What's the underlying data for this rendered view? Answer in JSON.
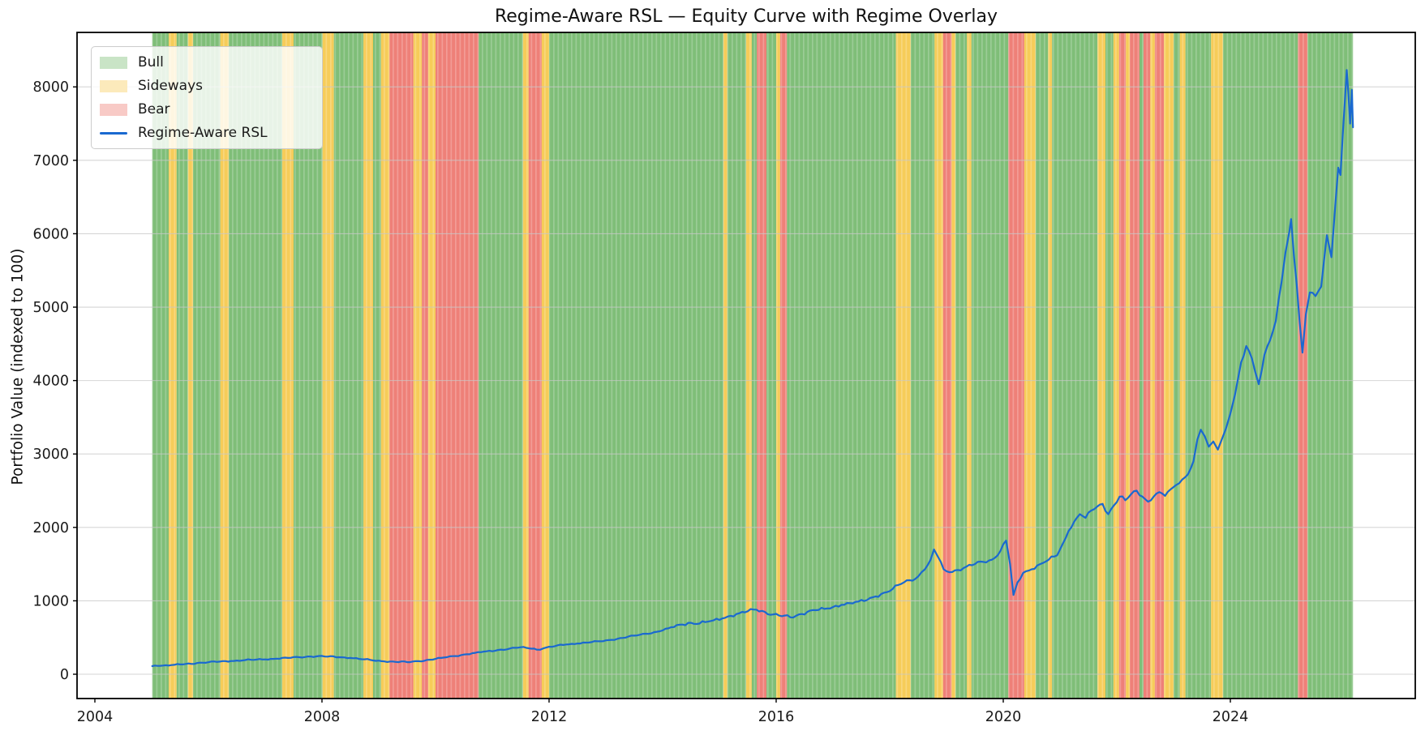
{
  "title": "Regime-Aware RSL — Equity Curve with Regime Overlay",
  "ylabel": "Portfolio Value (indexed to 100)",
  "legend": {
    "position": "upper left",
    "items": [
      {
        "label": "Bull",
        "type": "patch",
        "swatch": "#c9e4c6"
      },
      {
        "label": "Sideways",
        "type": "patch",
        "swatch": "#fceabb"
      },
      {
        "label": "Bear",
        "type": "patch",
        "swatch": "#f8cac6"
      },
      {
        "label": "Regime-Aware RSL",
        "type": "line",
        "swatch": "#1a69d0"
      }
    ]
  },
  "colors": {
    "bull": "#7fbe78",
    "sideways": "#f6cc59",
    "bear": "#ee8078",
    "line": "#1a69d0",
    "grid": "#c8c8c8",
    "spine": "#000000",
    "tick_text": "#1a1a1a"
  },
  "chart_data": {
    "type": "line",
    "title": "Regime-Aware RSL — Equity Curve with Regime Overlay",
    "xlabel": "",
    "ylabel": "Portfolio Value (indexed to 100)",
    "xlim": [
      2003.686,
      2027.257
    ],
    "ylim": [
      -331,
      8742
    ],
    "grid": "horizontal",
    "legend_position": "upper left",
    "x_ticks": [
      {
        "value": 2004,
        "label": "2004"
      },
      {
        "value": 2008,
        "label": "2008"
      },
      {
        "value": 2012,
        "label": "2012"
      },
      {
        "value": 2016,
        "label": "2016"
      },
      {
        "value": 2020,
        "label": "2020"
      },
      {
        "value": 2024,
        "label": "2024"
      }
    ],
    "y_ticks": [
      {
        "value": 0,
        "label": "0"
      },
      {
        "value": 1000,
        "label": "1000"
      },
      {
        "value": 2000,
        "label": "2000"
      },
      {
        "value": 3000,
        "label": "3000"
      },
      {
        "value": 4000,
        "label": "4000"
      },
      {
        "value": 5000,
        "label": "5000"
      },
      {
        "value": 6000,
        "label": "6000"
      },
      {
        "value": 7000,
        "label": "7000"
      },
      {
        "value": 8000,
        "label": "8000"
      }
    ],
    "regime_bands": [
      {
        "start": 2005.01,
        "end": 2005.3,
        "regime": "bull"
      },
      {
        "start": 2005.3,
        "end": 2005.44,
        "regime": "sideways"
      },
      {
        "start": 2005.44,
        "end": 2005.64,
        "regime": "bull"
      },
      {
        "start": 2005.64,
        "end": 2005.73,
        "regime": "sideways"
      },
      {
        "start": 2005.73,
        "end": 2006.21,
        "regime": "bull"
      },
      {
        "start": 2006.21,
        "end": 2006.36,
        "regime": "sideways"
      },
      {
        "start": 2006.36,
        "end": 2007.3,
        "regime": "bull"
      },
      {
        "start": 2007.3,
        "end": 2007.5,
        "regime": "sideways"
      },
      {
        "start": 2007.5,
        "end": 2008.01,
        "regime": "bull"
      },
      {
        "start": 2008.01,
        "end": 2008.21,
        "regime": "sideways"
      },
      {
        "start": 2008.21,
        "end": 2008.73,
        "regime": "bull"
      },
      {
        "start": 2008.73,
        "end": 2008.9,
        "regime": "sideways"
      },
      {
        "start": 2008.9,
        "end": 2009.04,
        "regime": "bull"
      },
      {
        "start": 2009.04,
        "end": 2009.19,
        "regime": "sideways"
      },
      {
        "start": 2009.19,
        "end": 2009.61,
        "regime": "bear"
      },
      {
        "start": 2009.61,
        "end": 2009.76,
        "regime": "sideways"
      },
      {
        "start": 2009.76,
        "end": 2009.87,
        "regime": "bear"
      },
      {
        "start": 2009.87,
        "end": 2010.0,
        "regime": "sideways"
      },
      {
        "start": 2010.0,
        "end": 2010.76,
        "regime": "bear"
      },
      {
        "start": 2010.76,
        "end": 2011.54,
        "regime": "bull"
      },
      {
        "start": 2011.54,
        "end": 2011.64,
        "regime": "sideways"
      },
      {
        "start": 2011.64,
        "end": 2011.87,
        "regime": "bear"
      },
      {
        "start": 2011.87,
        "end": 2012.0,
        "regime": "sideways"
      },
      {
        "start": 2012.0,
        "end": 2015.07,
        "regime": "bull"
      },
      {
        "start": 2015.07,
        "end": 2015.14,
        "regime": "sideways"
      },
      {
        "start": 2015.14,
        "end": 2015.47,
        "regime": "bull"
      },
      {
        "start": 2015.47,
        "end": 2015.57,
        "regime": "sideways"
      },
      {
        "start": 2015.57,
        "end": 2015.66,
        "regime": "bull"
      },
      {
        "start": 2015.66,
        "end": 2015.83,
        "regime": "bear"
      },
      {
        "start": 2015.83,
        "end": 2016.0,
        "regime": "bull"
      },
      {
        "start": 2016.0,
        "end": 2016.07,
        "regime": "sideways"
      },
      {
        "start": 2016.07,
        "end": 2016.19,
        "regime": "bear"
      },
      {
        "start": 2016.19,
        "end": 2018.11,
        "regime": "bull"
      },
      {
        "start": 2018.11,
        "end": 2018.37,
        "regime": "sideways"
      },
      {
        "start": 2018.37,
        "end": 2018.79,
        "regime": "bull"
      },
      {
        "start": 2018.79,
        "end": 2018.94,
        "regime": "sideways"
      },
      {
        "start": 2018.94,
        "end": 2019.09,
        "regime": "bear"
      },
      {
        "start": 2019.09,
        "end": 2019.16,
        "regime": "sideways"
      },
      {
        "start": 2019.16,
        "end": 2019.36,
        "regime": "bull"
      },
      {
        "start": 2019.36,
        "end": 2019.44,
        "regime": "sideways"
      },
      {
        "start": 2019.44,
        "end": 2020.09,
        "regime": "bull"
      },
      {
        "start": 2020.09,
        "end": 2020.37,
        "regime": "bear"
      },
      {
        "start": 2020.37,
        "end": 2020.57,
        "regime": "sideways"
      },
      {
        "start": 2020.57,
        "end": 2020.79,
        "regime": "bull"
      },
      {
        "start": 2020.79,
        "end": 2020.86,
        "regime": "sideways"
      },
      {
        "start": 2020.86,
        "end": 2021.66,
        "regime": "bull"
      },
      {
        "start": 2021.66,
        "end": 2021.8,
        "regime": "sideways"
      },
      {
        "start": 2021.8,
        "end": 2021.94,
        "regime": "bull"
      },
      {
        "start": 2021.94,
        "end": 2022.04,
        "regime": "sideways"
      },
      {
        "start": 2022.04,
        "end": 2022.16,
        "regime": "bear"
      },
      {
        "start": 2022.16,
        "end": 2022.23,
        "regime": "sideways"
      },
      {
        "start": 2022.23,
        "end": 2022.4,
        "regime": "bear"
      },
      {
        "start": 2022.4,
        "end": 2022.47,
        "regime": "bull"
      },
      {
        "start": 2022.47,
        "end": 2022.59,
        "regime": "bear"
      },
      {
        "start": 2022.59,
        "end": 2022.67,
        "regime": "sideways"
      },
      {
        "start": 2022.67,
        "end": 2022.83,
        "regime": "bear"
      },
      {
        "start": 2022.83,
        "end": 2023.0,
        "regime": "sideways"
      },
      {
        "start": 2023.0,
        "end": 2023.11,
        "regime": "bull"
      },
      {
        "start": 2023.11,
        "end": 2023.21,
        "regime": "sideways"
      },
      {
        "start": 2023.21,
        "end": 2023.66,
        "regime": "bull"
      },
      {
        "start": 2023.66,
        "end": 2023.87,
        "regime": "sideways"
      },
      {
        "start": 2023.87,
        "end": 2025.19,
        "regime": "bull"
      },
      {
        "start": 2025.19,
        "end": 2025.36,
        "regime": "bear"
      },
      {
        "start": 2025.36,
        "end": 2026.16,
        "regime": "bull"
      }
    ],
    "series": [
      {
        "name": "Regime-Aware RSL",
        "color": "#1a69d0",
        "points": [
          [
            2005.01,
            110
          ],
          [
            2005.2,
            118
          ],
          [
            2005.4,
            128
          ],
          [
            2005.6,
            140
          ],
          [
            2005.8,
            152
          ],
          [
            2006.0,
            163
          ],
          [
            2006.2,
            172
          ],
          [
            2006.4,
            180
          ],
          [
            2006.6,
            188
          ],
          [
            2006.8,
            196
          ],
          [
            2007.0,
            202
          ],
          [
            2007.2,
            212
          ],
          [
            2007.4,
            222
          ],
          [
            2007.6,
            232
          ],
          [
            2007.8,
            242
          ],
          [
            2007.95,
            248
          ],
          [
            2008.1,
            240
          ],
          [
            2008.3,
            232
          ],
          [
            2008.5,
            222
          ],
          [
            2008.7,
            204
          ],
          [
            2008.9,
            188
          ],
          [
            2009.1,
            175
          ],
          [
            2009.3,
            168
          ],
          [
            2009.5,
            165
          ],
          [
            2009.7,
            178
          ],
          [
            2009.9,
            198
          ],
          [
            2010.1,
            222
          ],
          [
            2010.3,
            246
          ],
          [
            2010.5,
            268
          ],
          [
            2010.7,
            292
          ],
          [
            2010.9,
            312
          ],
          [
            2011.1,
            330
          ],
          [
            2011.3,
            348
          ],
          [
            2011.5,
            368
          ],
          [
            2011.65,
            352
          ],
          [
            2011.78,
            336
          ],
          [
            2011.9,
            352
          ],
          [
            2012.1,
            382
          ],
          [
            2012.3,
            405
          ],
          [
            2012.5,
            418
          ],
          [
            2012.7,
            432
          ],
          [
            2012.9,
            448
          ],
          [
            2013.1,
            468
          ],
          [
            2013.3,
            495
          ],
          [
            2013.5,
            525
          ],
          [
            2013.7,
            552
          ],
          [
            2013.9,
            578
          ],
          [
            2014.1,
            625
          ],
          [
            2014.3,
            675
          ],
          [
            2014.45,
            700
          ],
          [
            2014.6,
            685
          ],
          [
            2014.75,
            710
          ],
          [
            2014.9,
            735
          ],
          [
            2015.05,
            760
          ],
          [
            2015.2,
            795
          ],
          [
            2015.35,
            830
          ],
          [
            2015.5,
            858
          ],
          [
            2015.65,
            880
          ],
          [
            2015.8,
            850
          ],
          [
            2015.95,
            815
          ],
          [
            2016.1,
            790
          ],
          [
            2016.25,
            775
          ],
          [
            2016.4,
            815
          ],
          [
            2016.55,
            850
          ],
          [
            2016.7,
            872
          ],
          [
            2016.85,
            890
          ],
          [
            2017.0,
            915
          ],
          [
            2017.15,
            945
          ],
          [
            2017.3,
            968
          ],
          [
            2017.45,
            990
          ],
          [
            2017.6,
            1010
          ],
          [
            2017.75,
            1060
          ],
          [
            2017.9,
            1110
          ],
          [
            2018.05,
            1160
          ],
          [
            2018.2,
            1230
          ],
          [
            2018.35,
            1280
          ],
          [
            2018.5,
            1330
          ],
          [
            2018.62,
            1430
          ],
          [
            2018.72,
            1560
          ],
          [
            2018.78,
            1700
          ],
          [
            2018.85,
            1600
          ],
          [
            2018.95,
            1430
          ],
          [
            2019.05,
            1390
          ],
          [
            2019.2,
            1420
          ],
          [
            2019.35,
            1465
          ],
          [
            2019.5,
            1500
          ],
          [
            2019.65,
            1530
          ],
          [
            2019.8,
            1560
          ],
          [
            2019.95,
            1680
          ],
          [
            2020.05,
            1820
          ],
          [
            2020.12,
            1500
          ],
          [
            2020.18,
            1080
          ],
          [
            2020.25,
            1250
          ],
          [
            2020.35,
            1380
          ],
          [
            2020.5,
            1430
          ],
          [
            2020.65,
            1500
          ],
          [
            2020.8,
            1560
          ],
          [
            2020.95,
            1620
          ],
          [
            2021.05,
            1780
          ],
          [
            2021.15,
            1950
          ],
          [
            2021.25,
            2080
          ],
          [
            2021.35,
            2180
          ],
          [
            2021.45,
            2130
          ],
          [
            2021.55,
            2230
          ],
          [
            2021.65,
            2280
          ],
          [
            2021.75,
            2320
          ],
          [
            2021.85,
            2180
          ],
          [
            2021.95,
            2300
          ],
          [
            2022.05,
            2420
          ],
          [
            2022.15,
            2370
          ],
          [
            2022.25,
            2450
          ],
          [
            2022.35,
            2500
          ],
          [
            2022.45,
            2420
          ],
          [
            2022.55,
            2350
          ],
          [
            2022.65,
            2420
          ],
          [
            2022.75,
            2480
          ],
          [
            2022.85,
            2430
          ],
          [
            2022.95,
            2520
          ],
          [
            2023.05,
            2580
          ],
          [
            2023.15,
            2650
          ],
          [
            2023.25,
            2720
          ],
          [
            2023.35,
            2900
          ],
          [
            2023.42,
            3200
          ],
          [
            2023.48,
            3330
          ],
          [
            2023.55,
            3240
          ],
          [
            2023.62,
            3100
          ],
          [
            2023.7,
            3170
          ],
          [
            2023.78,
            3060
          ],
          [
            2023.85,
            3200
          ],
          [
            2023.92,
            3340
          ],
          [
            2024.0,
            3550
          ],
          [
            2024.08,
            3800
          ],
          [
            2024.19,
            4250
          ],
          [
            2024.28,
            4470
          ],
          [
            2024.38,
            4300
          ],
          [
            2024.5,
            3950
          ],
          [
            2024.6,
            4350
          ],
          [
            2024.7,
            4550
          ],
          [
            2024.8,
            4810
          ],
          [
            2024.9,
            5330
          ],
          [
            2024.97,
            5740
          ],
          [
            2025.04,
            6030
          ],
          [
            2025.07,
            6200
          ],
          [
            2025.12,
            5700
          ],
          [
            2025.17,
            5300
          ],
          [
            2025.22,
            4800
          ],
          [
            2025.27,
            4380
          ],
          [
            2025.33,
            4900
          ],
          [
            2025.4,
            5200
          ],
          [
            2025.5,
            5150
          ],
          [
            2025.6,
            5280
          ],
          [
            2025.7,
            5980
          ],
          [
            2025.78,
            5680
          ],
          [
            2025.85,
            6400
          ],
          [
            2025.9,
            6900
          ],
          [
            2025.94,
            6800
          ],
          [
            2025.98,
            7350
          ],
          [
            2026.02,
            7840
          ],
          [
            2026.05,
            8230
          ],
          [
            2026.08,
            7900
          ],
          [
            2026.11,
            7500
          ],
          [
            2026.14,
            7960
          ],
          [
            2026.16,
            7450
          ]
        ]
      }
    ]
  }
}
